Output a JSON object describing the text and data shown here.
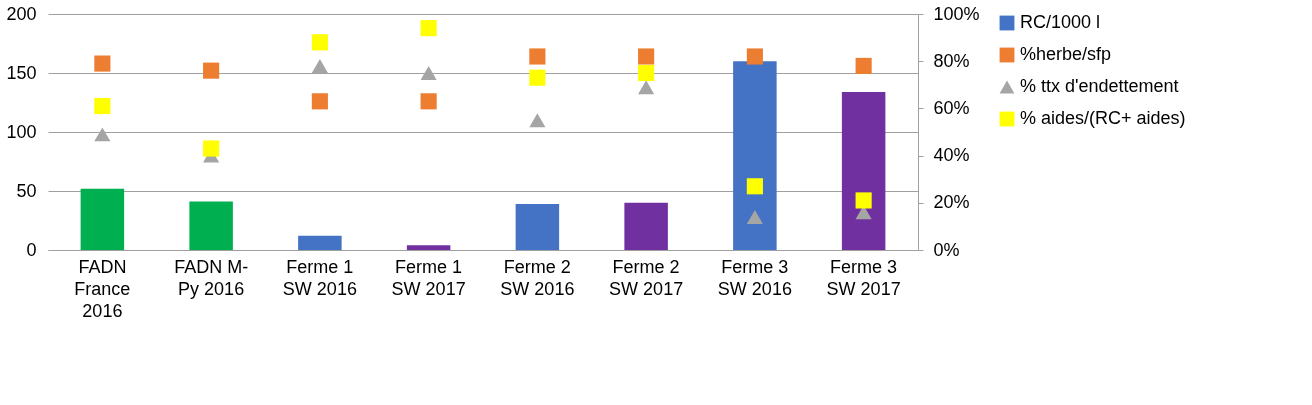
{
  "chart_data": {
    "type": "bar",
    "categories": [
      "FADN France 2016",
      "FADN M-Py 2016",
      "Ferme 1 SW 2016",
      "Ferme 1 SW 2017",
      "Ferme 2 SW 2016",
      "Ferme 2 SW 2017",
      "Ferme 3 SW 2016",
      "Ferme 3 SW 2017"
    ],
    "series": [
      {
        "name": "RC/1000 l",
        "color": "#4472c4",
        "colors": [
          "#00b050",
          "#00b050",
          "#4472c4",
          "#7030a0",
          "#4472c4",
          "#7030a0",
          "#4472c4",
          "#7030a0"
        ],
        "values": [
          52,
          41,
          12,
          4,
          39,
          40,
          160,
          134
        ]
      },
      {
        "name": "%herbe/sfp",
        "type": "scatter",
        "axis": "y2",
        "marker": "square",
        "color": "#ed7d31",
        "values": [
          79,
          76,
          63,
          63,
          82,
          82,
          82,
          78
        ]
      },
      {
        "name": "% ttx d'endettement",
        "type": "scatter",
        "axis": "y2",
        "marker": "triangle",
        "color": "#a5a5a5",
        "values": [
          49,
          40,
          78,
          75,
          55,
          69,
          14,
          16
        ]
      },
      {
        "name": "% aides/(RC+ aides)",
        "type": "scatter",
        "axis": "y2",
        "marker": "square",
        "color": "#ffff00",
        "values": [
          61,
          43,
          88,
          94,
          73,
          75,
          27,
          21
        ]
      }
    ],
    "ylim": [
      0,
      200
    ],
    "yticks": [
      0,
      50,
      100,
      150,
      200
    ],
    "y2lim": [
      0,
      100
    ],
    "y2ticks": [
      {
        "value": 0,
        "label": "0%"
      },
      {
        "value": 20,
        "label": "20%"
      },
      {
        "value": 40,
        "label": "40%"
      },
      {
        "value": 60,
        "label": "60%"
      },
      {
        "value": 80,
        "label": "80%"
      },
      {
        "value": 100,
        "label": "100%"
      }
    ],
    "grid": "y",
    "legend": "right"
  }
}
